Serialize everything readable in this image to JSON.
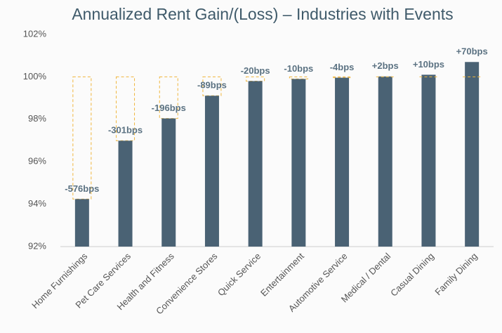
{
  "chart_data": {
    "type": "bar",
    "title": "Annualized Rent Gain/(Loss) – Industries with Events",
    "categories": [
      "Home Furnishings",
      "Pet Care Services",
      "Health and Fitness",
      "Convenience Stores",
      "Quick Service",
      "Entertainment",
      "Automotive Service",
      "Medical / Dental",
      "Casual Dining",
      "Family Dining"
    ],
    "values": [
      94.24,
      96.99,
      98.04,
      99.11,
      99.8,
      99.9,
      99.96,
      100.02,
      100.1,
      100.7
    ],
    "value_labels": [
      "-576bps",
      "-301bps",
      "-196bps",
      "-89bps",
      "-20bps",
      "-10bps",
      "-4bps",
      "+2bps",
      "+10bps",
      "+70bps"
    ],
    "color": "#4a6274",
    "reference": 100,
    "reference_color": "#f0b63c",
    "ylim": [
      92,
      102
    ],
    "yticks": [
      {
        "value": 92,
        "label": "92%"
      },
      {
        "value": 94,
        "label": "94%"
      },
      {
        "value": 96,
        "label": "96%"
      },
      {
        "value": 98,
        "label": "98%"
      },
      {
        "value": 100,
        "label": "100%"
      },
      {
        "value": 102,
        "label": "102%"
      }
    ],
    "grid": false
  }
}
